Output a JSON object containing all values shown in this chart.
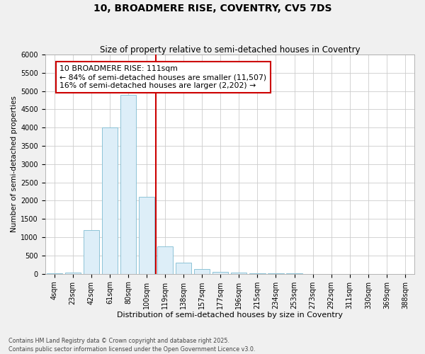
{
  "title": "10, BROADMERE RISE, COVENTRY, CV5 7DS",
  "subtitle": "Size of property relative to semi-detached houses in Coventry",
  "xlabel": "Distribution of semi-detached houses by size in Coventry",
  "ylabel": "Number of semi-detached properties",
  "categories": [
    "4sqm",
    "23sqm",
    "42sqm",
    "61sqm",
    "80sqm",
    "100sqm",
    "119sqm",
    "138sqm",
    "157sqm",
    "177sqm",
    "196sqm",
    "215sqm",
    "234sqm",
    "253sqm",
    "273sqm",
    "292sqm",
    "311sqm",
    "330sqm",
    "369sqm",
    "388sqm"
  ],
  "values": [
    15,
    35,
    1200,
    4000,
    4900,
    2100,
    750,
    310,
    130,
    55,
    25,
    12,
    8,
    5,
    3,
    2,
    1,
    1,
    1,
    1
  ],
  "bar_color": "#ddeef8",
  "bar_edge_color": "#7fbcd2",
  "vline_color": "#cc0000",
  "vline_index": 5,
  "annotation_text": "10 BROADMERE RISE: 111sqm\n← 84% of semi-detached houses are smaller (11,507)\n16% of semi-detached houses are larger (2,202) →",
  "annotation_box_edgecolor": "#cc0000",
  "ylim": [
    0,
    6000
  ],
  "yticks": [
    0,
    500,
    1000,
    1500,
    2000,
    2500,
    3000,
    3500,
    4000,
    4500,
    5000,
    5500,
    6000
  ],
  "footer_text": "Contains HM Land Registry data © Crown copyright and database right 2025.\nContains public sector information licensed under the Open Government Licence v3.0.",
  "fig_bg_color": "#f0f0f0",
  "plot_bg_color": "#ffffff",
  "grid_color": "#cccccc",
  "tick_label_fontsize": 7,
  "axis_label_fontsize": 8,
  "title_fontsize": 10,
  "subtitle_fontsize": 8.5
}
